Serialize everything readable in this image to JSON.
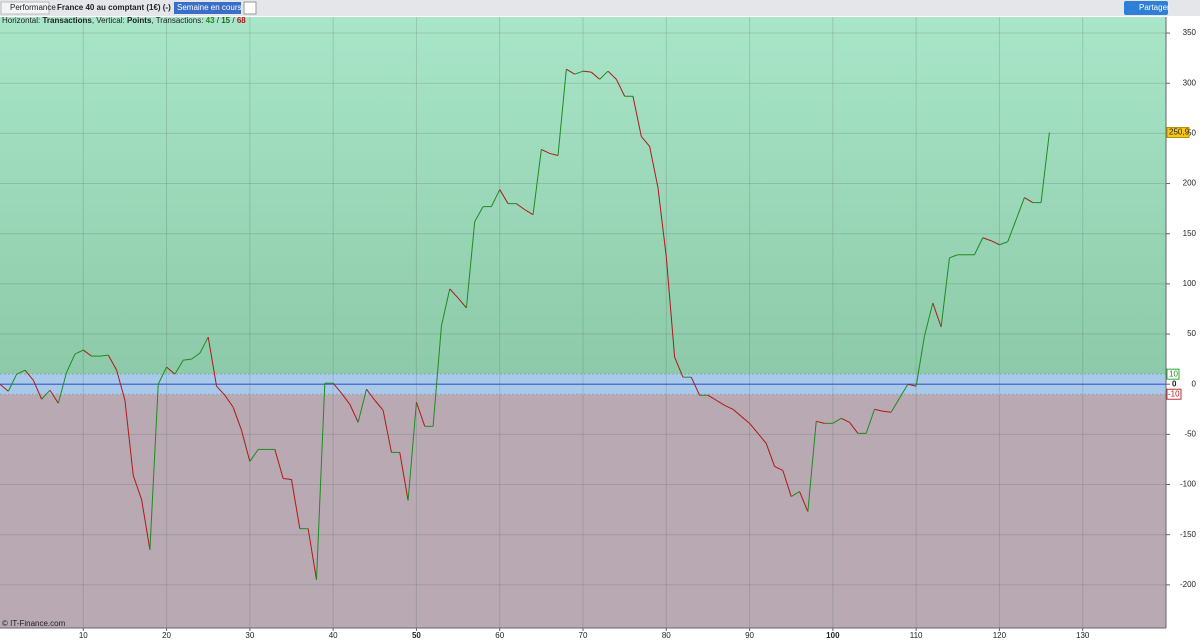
{
  "toolbar": {
    "module": "Performance",
    "instrument": "France 40 au comptant (1€) (-)",
    "period": "Semaine en cours",
    "share": "Partager"
  },
  "chart_data": {
    "type": "line",
    "subtitle_parts": [
      "Horizontal: ",
      "Transactions",
      ", Vertical: ",
      "Points",
      ", Transactions: ",
      "43",
      " / ",
      "15",
      " / ",
      "68"
    ],
    "copyright": "© IT-Finance.com",
    "up_color": "#1e8c1e",
    "down_color": "#b01818",
    "x": [
      0,
      1,
      2,
      3,
      4,
      5,
      6,
      7,
      8,
      9,
      10,
      11,
      12,
      13,
      14,
      15,
      16,
      17,
      18,
      19,
      20,
      21,
      22,
      23,
      24,
      25,
      26,
      27,
      28,
      29,
      30,
      31,
      32,
      33,
      34,
      35,
      36,
      37,
      38,
      39,
      40,
      41,
      42,
      43,
      44,
      45,
      46,
      47,
      48,
      49,
      50,
      51,
      52,
      53,
      54,
      55,
      56,
      57,
      58,
      59,
      60,
      61,
      62,
      63,
      64,
      65,
      66,
      67,
      68,
      69,
      70,
      71,
      72,
      73,
      74,
      75,
      76,
      77,
      78,
      79,
      80,
      81,
      82,
      83,
      84,
      85,
      86,
      87,
      88,
      89,
      90,
      91,
      92,
      93,
      94,
      95,
      96,
      97,
      98,
      99,
      100,
      101,
      102,
      103,
      104,
      105,
      106,
      107,
      108,
      109,
      110,
      111,
      112,
      113,
      114,
      115,
      116,
      117,
      118,
      119,
      120,
      121,
      122,
      123,
      124,
      125,
      126
    ],
    "series": [
      {
        "values": [
          0,
          -7,
          10,
          14,
          4,
          -15,
          -6,
          -19,
          12,
          30,
          34,
          28,
          28,
          29,
          14,
          -16,
          -91,
          -115,
          -165,
          0,
          17,
          10,
          24,
          25,
          31,
          47,
          -2,
          -11,
          -23,
          -46,
          -77,
          -65,
          -65,
          -65,
          -94,
          -95,
          -144,
          -144,
          -195,
          1,
          1,
          -9,
          -20,
          -38,
          -5,
          -16,
          -26,
          -68,
          -68,
          -116,
          -18,
          -42,
          -42,
          58,
          95,
          86,
          76,
          162,
          177,
          177,
          194,
          180,
          180,
          174,
          169,
          234,
          230,
          228,
          314,
          309,
          312,
          311,
          304,
          312,
          304,
          287,
          287,
          247,
          237,
          196,
          127,
          27,
          7,
          7,
          -11,
          -11,
          -16,
          -21,
          -25,
          -32,
          -39,
          -49,
          -59,
          -82,
          -86,
          -112,
          -107,
          -127,
          -37,
          -39,
          -39,
          -34,
          -38,
          -49,
          -49,
          -25,
          -27,
          -28,
          -14,
          0,
          -2,
          48,
          81,
          57,
          126,
          129,
          129,
          129,
          146,
          143,
          139,
          142,
          164,
          186,
          181,
          181,
          250.9
        ]
      }
    ],
    "current_value_label": "250,9",
    "band": [
      -10,
      10
    ],
    "zero_line": 0,
    "xlim": [
      0,
      140
    ],
    "xticks": [
      10,
      20,
      30,
      40,
      50,
      60,
      70,
      80,
      90,
      100,
      110,
      120,
      130
    ],
    "bold_xticks": [
      50,
      100
    ],
    "ylim": [
      -243,
      366
    ],
    "yticks": [
      -200,
      -150,
      -100,
      -50,
      0,
      50,
      100,
      150,
      200,
      250,
      300,
      350
    ],
    "grid": true
  }
}
